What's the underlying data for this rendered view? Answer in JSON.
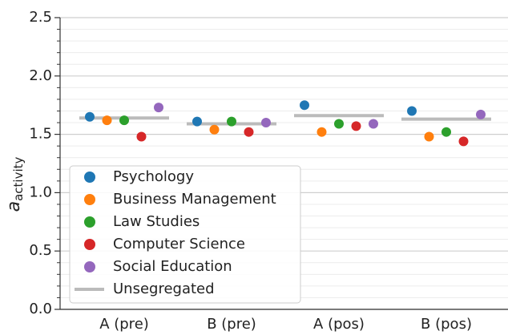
{
  "chart_data": {
    "type": "dot",
    "ylabel": "a",
    "ylabel_subscript": "activity",
    "categories": [
      "A (pre)",
      "B (pre)",
      "A (pos)",
      "B (pos)"
    ],
    "series": [
      {
        "name": "Psychology",
        "color": "#1f77b4",
        "values": [
          1.65,
          1.61,
          1.75,
          1.7
        ]
      },
      {
        "name": "Business Management",
        "color": "#ff7f0e",
        "values": [
          1.62,
          1.54,
          1.52,
          1.48
        ]
      },
      {
        "name": "Law Studies",
        "color": "#2ca02c",
        "values": [
          1.62,
          1.61,
          1.59,
          1.52
        ]
      },
      {
        "name": "Computer Science",
        "color": "#d62728",
        "values": [
          1.48,
          1.52,
          1.57,
          1.44
        ]
      },
      {
        "name": "Social Education",
        "color": "#9467bd",
        "values": [
          1.73,
          1.6,
          1.59,
          1.67
        ]
      }
    ],
    "reference": {
      "name": "Unsegregated",
      "color": "#bbbbbb",
      "values": [
        1.64,
        1.59,
        1.66,
        1.63
      ]
    },
    "ylim": [
      0,
      2.5
    ],
    "yticks": [
      {
        "value": 0,
        "label": "0.0"
      },
      {
        "value": 0.5,
        "label": "0.5"
      },
      {
        "value": 1,
        "label": "1.0"
      },
      {
        "value": 1.5,
        "label": "1.5"
      },
      {
        "value": 2,
        "label": "2.0"
      },
      {
        "value": 2.5,
        "label": "2.5"
      }
    ],
    "yminor_ticks": [
      0.1,
      0.2,
      0.3,
      0.4,
      0.6,
      0.7,
      0.8,
      0.9,
      1.1,
      1.2,
      1.3,
      1.4,
      1.6,
      1.7,
      1.8,
      1.9,
      2.1,
      2.2,
      2.3,
      2.4
    ],
    "grid": true,
    "legend": "lower left"
  }
}
